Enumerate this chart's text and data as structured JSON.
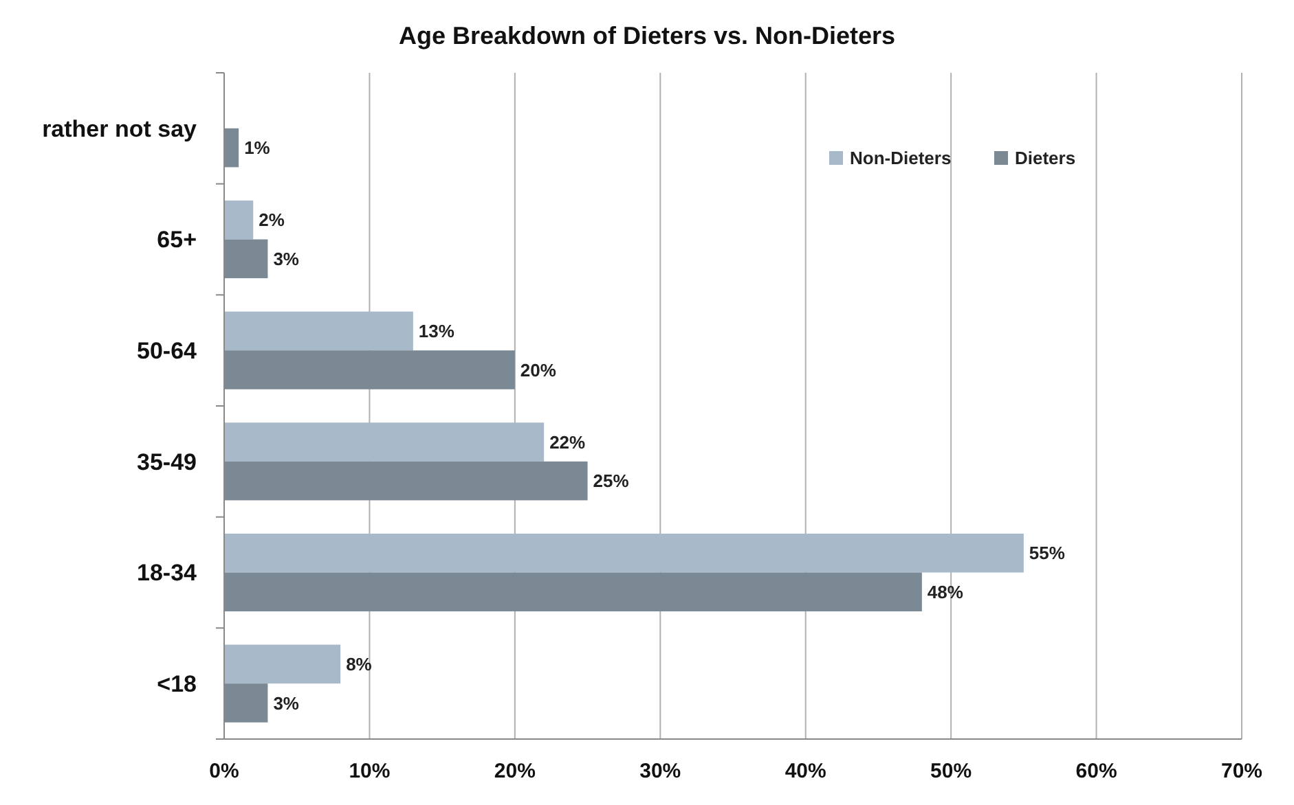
{
  "chart_data": {
    "type": "bar",
    "orientation": "horizontal",
    "title": "Age Breakdown of Dieters vs. Non-Dieters",
    "categories": [
      "rather not say",
      "65+",
      "50-64",
      "35-49",
      "18-34",
      "<18"
    ],
    "series": [
      {
        "name": "Non-Dieters",
        "color": "#a8bac9",
        "values": [
          null,
          2,
          13,
          22,
          55,
          8
        ],
        "value_labels": [
          null,
          "2%",
          "13%",
          "22%",
          "55%",
          "8%"
        ]
      },
      {
        "name": "Dieters",
        "color": "#7b8994",
        "values": [
          1,
          3,
          20,
          25,
          48,
          3
        ],
        "value_labels": [
          "1%",
          "3%",
          "20%",
          "25%",
          "48%",
          "3%"
        ]
      }
    ],
    "xlim": [
      0,
      70
    ],
    "xticks": [
      {
        "value": 0,
        "label": "0%"
      },
      {
        "value": 10,
        "label": "10%"
      },
      {
        "value": 20,
        "label": "20%"
      },
      {
        "value": 30,
        "label": "30%"
      },
      {
        "value": 40,
        "label": "40%"
      },
      {
        "value": 50,
        "label": "50%"
      },
      {
        "value": 60,
        "label": "60%"
      },
      {
        "value": 70,
        "label": "70%"
      }
    ],
    "grid": "x",
    "legend": "top right"
  }
}
